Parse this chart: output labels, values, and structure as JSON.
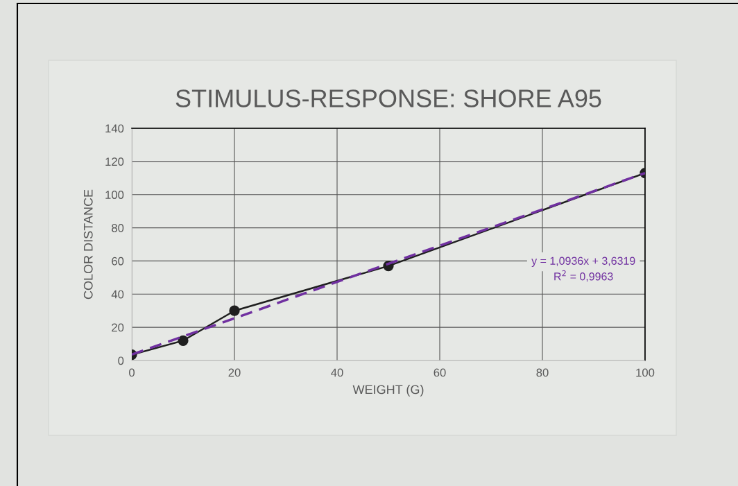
{
  "chart_data": {
    "type": "line",
    "title": "STIMULUS-RESPONSE: SHORE A95",
    "xlabel": "WEIGHT (G)",
    "ylabel": "COLOR DISTANCE",
    "series": [
      {
        "color": "#1f1f1f",
        "marker": "circle",
        "line_style": "solid",
        "x": [
          0,
          10,
          20,
          50,
          100
        ],
        "values": [
          3.5,
          12,
          30,
          57,
          113
        ]
      },
      {
        "color": "#7030a0",
        "marker": "none",
        "line_style": "dashed",
        "x": [
          0,
          100
        ],
        "values": [
          3.6,
          113
        ]
      }
    ],
    "annotations": [
      "y = 1,0936x + 3,6319",
      "R$^{2}$ = 0,9963"
    ],
    "xlim": [
      0,
      100
    ],
    "xticks": [
      0,
      20,
      40,
      60,
      80,
      100
    ],
    "ylim": [
      0,
      140
    ],
    "yticks": [
      0,
      20,
      40,
      60,
      80,
      100,
      120,
      140
    ],
    "grid": true,
    "legend": false
  }
}
